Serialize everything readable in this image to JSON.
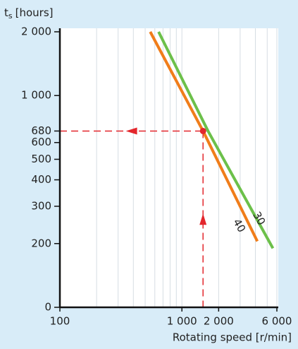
{
  "chart_data": {
    "type": "line",
    "y_label": "t",
    "y_label_sub": "s",
    "y_label_unit": "[hours]",
    "x_label": "Rotating speed [r/min]",
    "log_x": true,
    "log_y": true,
    "xlim": [
      100,
      6000
    ],
    "ylim": [
      100,
      2000
    ],
    "xticks": [
      100,
      {
        "value": 1000,
        "label": "1 000"
      },
      {
        "value": 2000,
        "label": "2 000"
      },
      {
        "value": 6000,
        "label": "6 000"
      }
    ],
    "xgrid": [
      200,
      300,
      400,
      500,
      600,
      700,
      800,
      900,
      1000,
      2000,
      3000,
      4000,
      5000,
      6000
    ],
    "yticks": [
      0,
      200,
      300,
      400,
      500,
      600,
      680,
      {
        "value": 1000,
        "label": "1 000"
      },
      {
        "value": 2000,
        "label": "2 000"
      }
    ],
    "series": [
      {
        "name": "40",
        "color": "#f07d1a",
        "x": [
          550,
          1490,
          4150
        ],
        "values": [
          2000,
          680,
          205
        ]
      },
      {
        "name": "30",
        "color": "#6cc04a",
        "x": [
          644,
          1637,
          5570
        ],
        "values": [
          2000,
          680,
          190
        ]
      }
    ],
    "example_point": {
      "x": 1490,
      "y": 680,
      "color": "#e3262c"
    }
  }
}
